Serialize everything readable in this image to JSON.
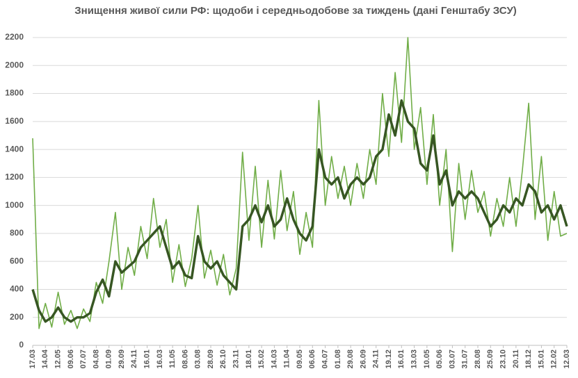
{
  "chart_data": {
    "type": "line",
    "title": "Знищення живої сили РФ: щодоби і середньодобове за тиждень (дані Генштабу ЗСУ)",
    "categories": [
      "17.03",
      null,
      "14.04",
      null,
      "12.05",
      null,
      "09.06",
      null,
      "07.07",
      null,
      "04.08",
      null,
      "01.09",
      null,
      "29.09",
      null,
      "24.11",
      null,
      "16.01",
      null,
      "16.03",
      null,
      "11.05",
      null,
      "08.06",
      null,
      "03.08",
      null,
      "28.09",
      null,
      "26.10",
      null,
      "23.11",
      null,
      "18.01",
      null,
      "15.02",
      null,
      "14.03",
      null,
      "11.04",
      null,
      "09.05",
      null,
      "06.06",
      null,
      "04.07",
      null,
      "01.08",
      null,
      "29.08",
      null,
      "26.09",
      null,
      "24.11",
      null,
      "19.12",
      null,
      "16.01",
      null,
      "13.03",
      null,
      "10.05",
      null,
      "05.06",
      null,
      "03.07",
      null,
      "31.07",
      null,
      "28.08",
      null,
      "25.09",
      null,
      "23.10",
      null,
      "20.11",
      null,
      "18.12",
      null,
      "15.01",
      null,
      "12.02",
      null,
      "12.03"
    ],
    "series": [
      {
        "color": "#70ad47",
        "width": 1.6,
        "values": [
          1480,
          120,
          300,
          130,
          380,
          150,
          250,
          120,
          260,
          170,
          450,
          300,
          600,
          950,
          400,
          700,
          500,
          850,
          620,
          1050,
          700,
          900,
          450,
          720,
          420,
          620,
          1000,
          480,
          680,
          430,
          650,
          360,
          550,
          1380,
          750,
          1280,
          700,
          1180,
          760,
          1250,
          820,
          1100,
          650,
          950,
          700,
          1750,
          1000,
          1350,
          1050,
          1280,
          1000,
          1300,
          1050,
          1400,
          1150,
          1800,
          1350,
          1950,
          1450,
          2200,
          1400,
          1700,
          1150,
          1650,
          1000,
          1400,
          670,
          1300,
          900,
          1250,
          950,
          1100,
          780,
          1050,
          850,
          1200,
          850,
          1250,
          1730,
          900,
          1350,
          750,
          1100,
          780,
          800
        ]
      },
      {
        "color": "#375623",
        "width": 3.5,
        "values": [
          400,
          250,
          170,
          200,
          270,
          200,
          170,
          200,
          200,
          230,
          380,
          470,
          350,
          600,
          520,
          560,
          600,
          700,
          750,
          800,
          850,
          700,
          550,
          600,
          500,
          480,
          780,
          600,
          550,
          600,
          500,
          450,
          400,
          850,
          900,
          1000,
          880,
          1000,
          850,
          900,
          1050,
          900,
          800,
          750,
          850,
          1400,
          1200,
          1150,
          1200,
          1050,
          1150,
          1200,
          1150,
          1200,
          1350,
          1400,
          1650,
          1500,
          1750,
          1600,
          1550,
          1300,
          1250,
          1500,
          1150,
          1250,
          1000,
          1100,
          1050,
          1100,
          1050,
          950,
          850,
          900,
          1000,
          950,
          1050,
          1000,
          1150,
          1100,
          950,
          1000,
          900,
          1000,
          850
        ]
      }
    ],
    "ylim": [
      0,
      2200
    ],
    "yticks": [
      0,
      200,
      400,
      600,
      800,
      1000,
      1200,
      1400,
      1600,
      1800,
      2000,
      2200
    ],
    "grid": true
  }
}
